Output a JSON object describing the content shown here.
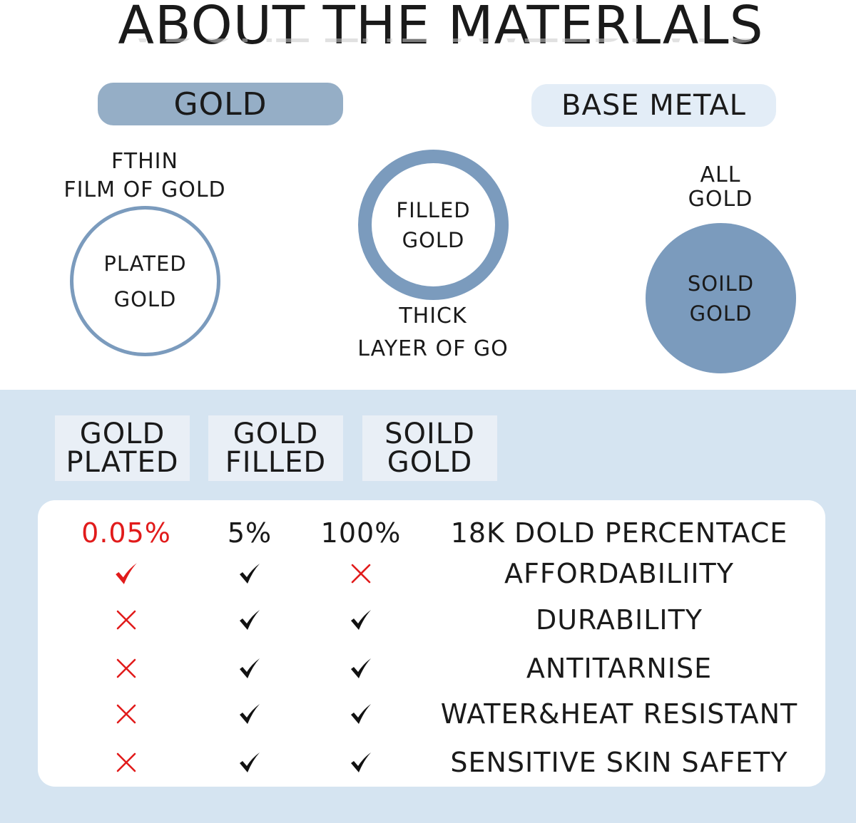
{
  "title": "ABOUT THE MATERLALS",
  "top": {
    "gold_pill": "GOLD",
    "base_metal_pill": "BASE METAL",
    "plated": {
      "caption_line1": "FTHIN",
      "caption_line2": "FILM OF GOLD",
      "circle_line1": "PLATED",
      "circle_line2": "GOLD"
    },
    "filled": {
      "circle_line1": "FILLED",
      "circle_line2": "GOLD",
      "caption_line1": "THICK",
      "caption_line2": "LAYER OF GO"
    },
    "solid": {
      "caption_line1": "ALL",
      "caption_line2": "GOLD",
      "circle_line1": "SOILD",
      "circle_line2": "GOLD"
    }
  },
  "tabs": [
    {
      "line1": "GOLD",
      "line2": "PLATED"
    },
    {
      "line1": "GOLD",
      "line2": "FILLED"
    },
    {
      "line1": "SOILD",
      "line2": "GOLD"
    }
  ],
  "colors": {
    "accent_blue": "#7b9bbd",
    "pill_gold": "#95aec6",
    "pill_base": "#e3edf7",
    "panel_bg": "#d5e4f1",
    "negative_red": "#e11b1b"
  },
  "table": {
    "percent_row": {
      "plated": "0.05%",
      "filled": "5%",
      "solid": "100%",
      "label": "18K DOLD PERCENTACE"
    },
    "rows": [
      {
        "label": "AFFORDABILIITY",
        "plated": "check-red-icon",
        "filled": "check-icon",
        "solid": "cross-icon"
      },
      {
        "label": "DURABILITY",
        "plated": "cross-icon",
        "filled": "check-icon",
        "solid": "check-icon"
      },
      {
        "label": "ANTITARNISE",
        "plated": "cross-icon",
        "filled": "check-icon",
        "solid": "check-icon"
      },
      {
        "label": "WATER&HEAT RESISTANT",
        "plated": "cross-icon",
        "filled": "check-icon",
        "solid": "check-icon"
      },
      {
        "label": "SENSITIVE SKIN SAFETY",
        "plated": "cross-icon",
        "filled": "check-icon",
        "solid": "check-icon"
      }
    ]
  }
}
